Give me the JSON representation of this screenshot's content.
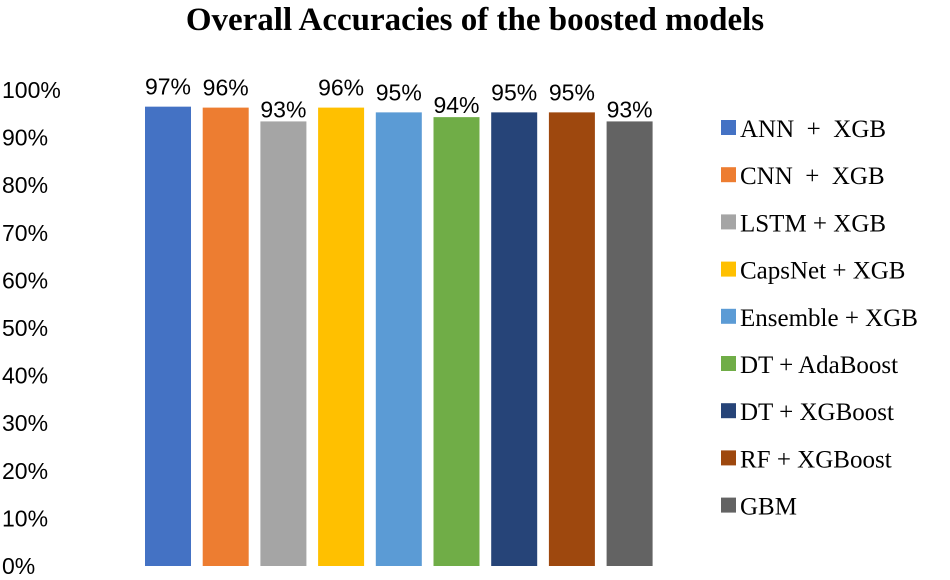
{
  "chart_data": {
    "type": "bar",
    "title": "Overall Accuracies of the boosted models",
    "xlabel": "",
    "ylabel": "",
    "ylim": [
      0,
      100
    ],
    "y_ticks": [
      "0%",
      "10%",
      "20%",
      "30%",
      "40%",
      "50%",
      "60%",
      "70%",
      "80%",
      "90%",
      "100%"
    ],
    "grid": false,
    "legend_position": "right",
    "series": [
      {
        "name": "ANN  +  XGB",
        "value": 96.5,
        "label": "97%",
        "color": "#4472C4"
      },
      {
        "name": "CNN  +  XGB",
        "value": 96.3,
        "label": "96%",
        "color": "#ED7D31"
      },
      {
        "name": "LSTM + XGB",
        "value": 93.4,
        "label": "93%",
        "color": "#A5A5A5"
      },
      {
        "name": "CapsNet + XGB",
        "value": 96.3,
        "label": "96%",
        "color": "#FFC000"
      },
      {
        "name": "Ensemble + XGB",
        "value": 95.3,
        "label": "95%",
        "color": "#5B9BD5"
      },
      {
        "name": "DT + AdaBoost",
        "value": 94.3,
        "label": "94%",
        "color": "#70AD47"
      },
      {
        "name": "DT + XGBoost",
        "value": 95.3,
        "label": "95%",
        "color": "#264478"
      },
      {
        "name": "RF + XGBoost",
        "value": 95.3,
        "label": "95%",
        "color": "#9E480E"
      },
      {
        "name": "GBM",
        "value": 93.4,
        "label": "93%",
        "color": "#636363"
      }
    ]
  }
}
